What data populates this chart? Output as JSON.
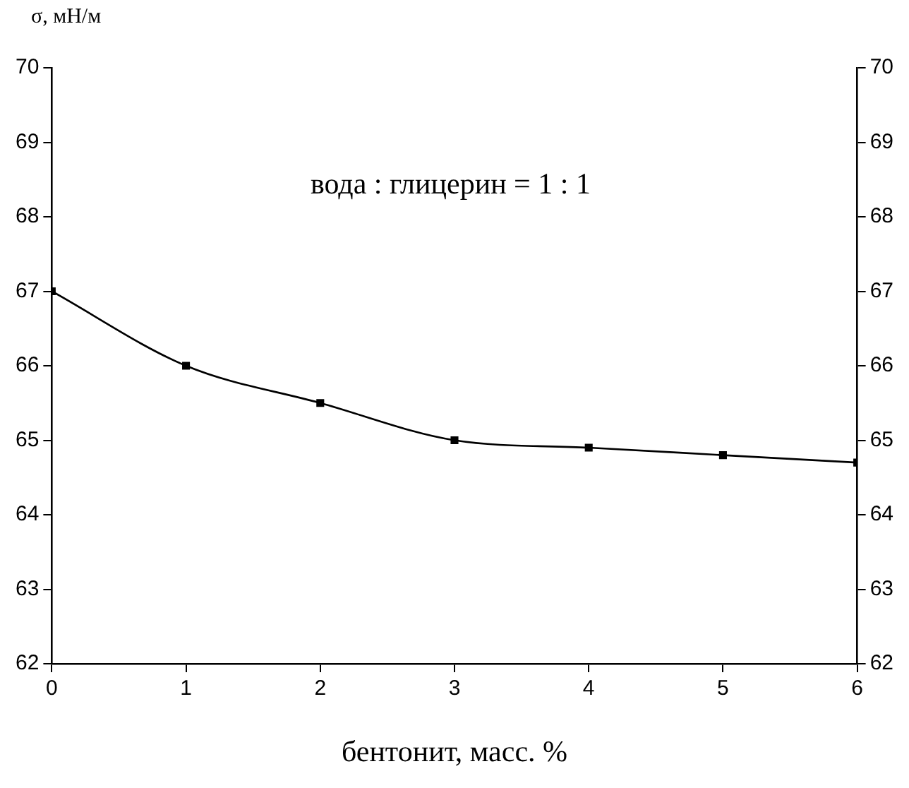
{
  "chart_data": {
    "type": "line",
    "xlabel": "бентонит, масс. %",
    "ylabel": "σ, мН/м",
    "annotations": [
      "вода : глицерин = 1 : 1"
    ],
    "x": [
      0,
      1,
      2,
      3,
      4,
      5,
      6
    ],
    "series": [
      {
        "color": "#000000",
        "values": [
          67,
          66,
          65.5,
          65,
          64.9,
          64.8,
          64.7
        ]
      }
    ],
    "xlim": [
      0,
      6
    ],
    "xticks": [
      0,
      1,
      2,
      3,
      4,
      5,
      6
    ],
    "ylim": [
      62,
      70
    ],
    "yticks": [
      62,
      63,
      64,
      65,
      66,
      67,
      68,
      69,
      70
    ],
    "y2lim": [
      62,
      70
    ],
    "y2ticks": [
      62,
      63,
      64,
      65,
      66,
      67,
      68,
      69,
      70
    ],
    "grid": false,
    "legend": false,
    "marker": "square",
    "line_style": "solid"
  }
}
